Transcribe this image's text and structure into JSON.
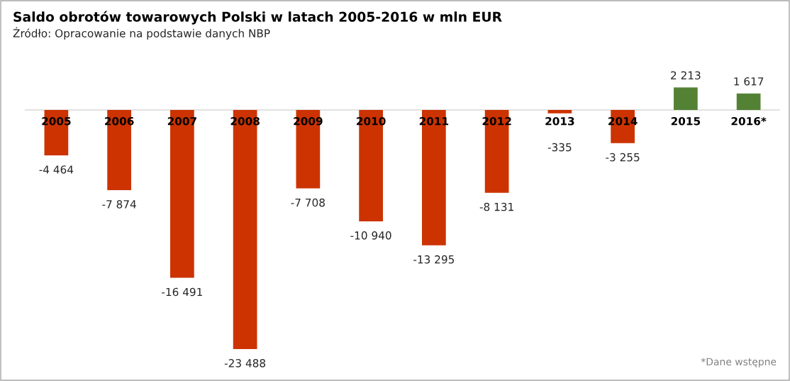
{
  "chart_data": {
    "type": "bar",
    "title": "Saldo obrotów towarowych Polski w latach 2005-2016 w mln EUR",
    "subtitle": "Źródło: Opracowanie na podstawie danych NBP",
    "categories": [
      "2005",
      "2006",
      "2007",
      "2008",
      "2009",
      "2010",
      "2011",
      "2012",
      "2013",
      "2014",
      "2015",
      "2016*"
    ],
    "values": [
      -4464,
      -7874,
      -16491,
      -23488,
      -7708,
      -10940,
      -13295,
      -8131,
      -335,
      -3255,
      2213,
      1617
    ],
    "value_labels": [
      "-4 464",
      "-7 874",
      "-16 491",
      "-23 488",
      "-7 708",
      "-10 940",
      "-13 295",
      "-8 131",
      "-335",
      "-3 255",
      "2 213",
      "1 617"
    ],
    "colors": [
      "#cc3300",
      "#cc3300",
      "#cc3300",
      "#cc3300",
      "#cc3300",
      "#cc3300",
      "#cc3300",
      "#cc3300",
      "#cc3300",
      "#cc3300",
      "#548235",
      "#548235"
    ],
    "annotations": [
      "*Dane wstępne"
    ],
    "legend": false
  }
}
